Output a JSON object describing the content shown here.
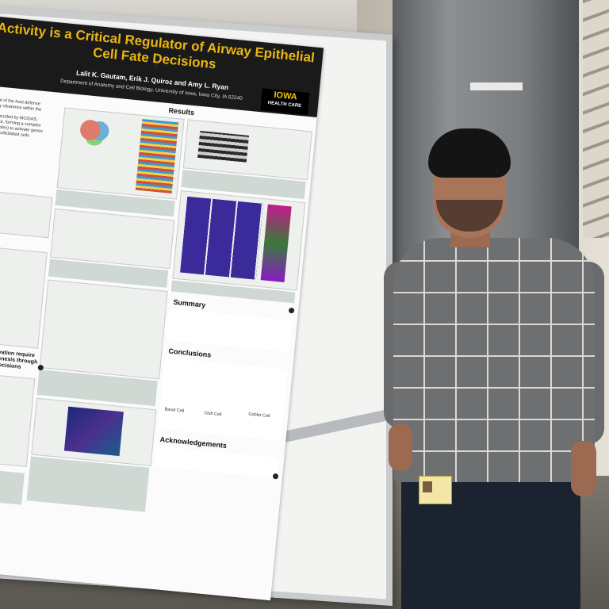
{
  "poster": {
    "title_line1": "Activity is a Critical Regulator of Airway Epithelial",
    "title_line2": "Cell Fate Decisions",
    "authors": "Lalit K. Gautam, Erik J. Quiroz and Amy L. Ryan",
    "department": "Department of Anatomy and Cell Biology, University of Iowa, Iowa City, IA 52240",
    "logo_main": "IOWA",
    "logo_sub": "HEALTH CARE",
    "sections": {
      "results": "Results",
      "summary": "Summary",
      "conclusions": "Conclusions",
      "acknowledgements": "Acknowledgements",
      "left_heading": "Multiciliin activation require",
      "left_heading2": "ive multiciliogenesis through",
      "left_heading3": "club cell fate decisions"
    },
    "snippets": {
      "intro1": "ponent of the host defense",
      "intro2": "ociliary clearance within the",
      "intro3": "illin, encoded by MCIDAS,",
      "intro4": "activator, forming a complex",
      "intro5": "M complex) to activate genes",
      "intro6": "on of multiciliated cells",
      "labels_basal": "Basal Cell",
      "labels_club": "Club Cell",
      "labels_goblet": "Goblet Cell"
    }
  },
  "colors": {
    "poster_title_text": "#000000",
    "iowa_gold": "#f1c400",
    "sweater": "#6e6f70"
  }
}
